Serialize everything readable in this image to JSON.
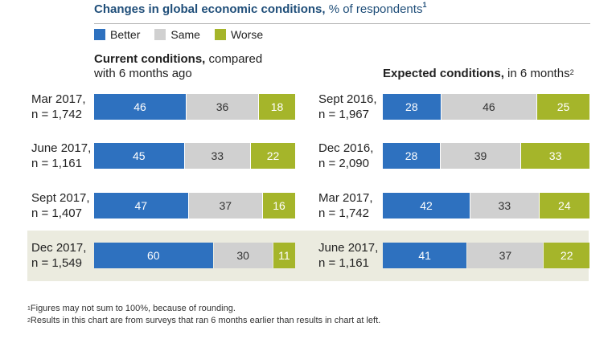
{
  "title": {
    "bold": "Changes in global economic conditions,",
    "rest": " % of respondents",
    "note": "1"
  },
  "legend": [
    {
      "label": "Better",
      "color": "#2e71bf"
    },
    {
      "label": "Same",
      "color": "#d0d0d0"
    },
    {
      "label": "Worse",
      "color": "#a5b52a"
    }
  ],
  "left_heading": {
    "bold": "Current conditions,",
    "rest": " compared",
    "line2": "with 6 months ago"
  },
  "right_heading": {
    "bold": "Expected conditions,",
    "rest": " in 6 months",
    "note": "2"
  },
  "footnotes": [
    {
      "mark": "1",
      "text": "Figures may not sum to 100%, because of rounding."
    },
    {
      "mark": "2",
      "text": "Results in this chart are from surveys that ran 6 months earlier than results in chart at left."
    }
  ],
  "chart_data": [
    {
      "type": "bar",
      "stacked": true,
      "orientation": "horizontal",
      "title": "Current conditions, compared with 6 months ago",
      "categories": [
        "Mar 2017, n = 1,742",
        "June 2017, n = 1,161",
        "Sept 2017, n = 1,407",
        "Dec 2017, n = 1,549"
      ],
      "row_labels": [
        [
          "Mar 2017,",
          "n = 1,742"
        ],
        [
          "June 2017,",
          "n = 1,161"
        ],
        [
          "Sept 2017,",
          "n = 1,407"
        ],
        [
          "Dec 2017,",
          "n = 1,549"
        ]
      ],
      "series": [
        {
          "name": "Better",
          "color": "#2e71bf",
          "values": [
            46,
            45,
            47,
            60
          ]
        },
        {
          "name": "Same",
          "color": "#d0d0d0",
          "values": [
            36,
            33,
            37,
            30
          ]
        },
        {
          "name": "Worse",
          "color": "#a5b52a",
          "values": [
            18,
            22,
            16,
            11
          ]
        }
      ],
      "highlighted_category": "Dec 2017, n = 1,549"
    },
    {
      "type": "bar",
      "stacked": true,
      "orientation": "horizontal",
      "title": "Expected conditions, in 6 months",
      "categories": [
        "Sept 2016, n = 1,967",
        "Dec 2016, n = 2,090",
        "Mar 2017, n = 1,742",
        "June 2017, n = 1,161"
      ],
      "row_labels": [
        [
          "Sept 2016,",
          "n = 1,967"
        ],
        [
          "Dec 2016,",
          "n = 2,090"
        ],
        [
          "Mar 2017,",
          "n = 1,742"
        ],
        [
          "June 2017,",
          "n = 1,161"
        ]
      ],
      "series": [
        {
          "name": "Better",
          "color": "#2e71bf",
          "values": [
            28,
            28,
            42,
            41
          ]
        },
        {
          "name": "Same",
          "color": "#d0d0d0",
          "values": [
            46,
            39,
            33,
            37
          ]
        },
        {
          "name": "Worse",
          "color": "#a5b52a",
          "values": [
            25,
            33,
            24,
            22
          ]
        }
      ],
      "highlighted_category": "June 2017, n = 1,161"
    }
  ]
}
